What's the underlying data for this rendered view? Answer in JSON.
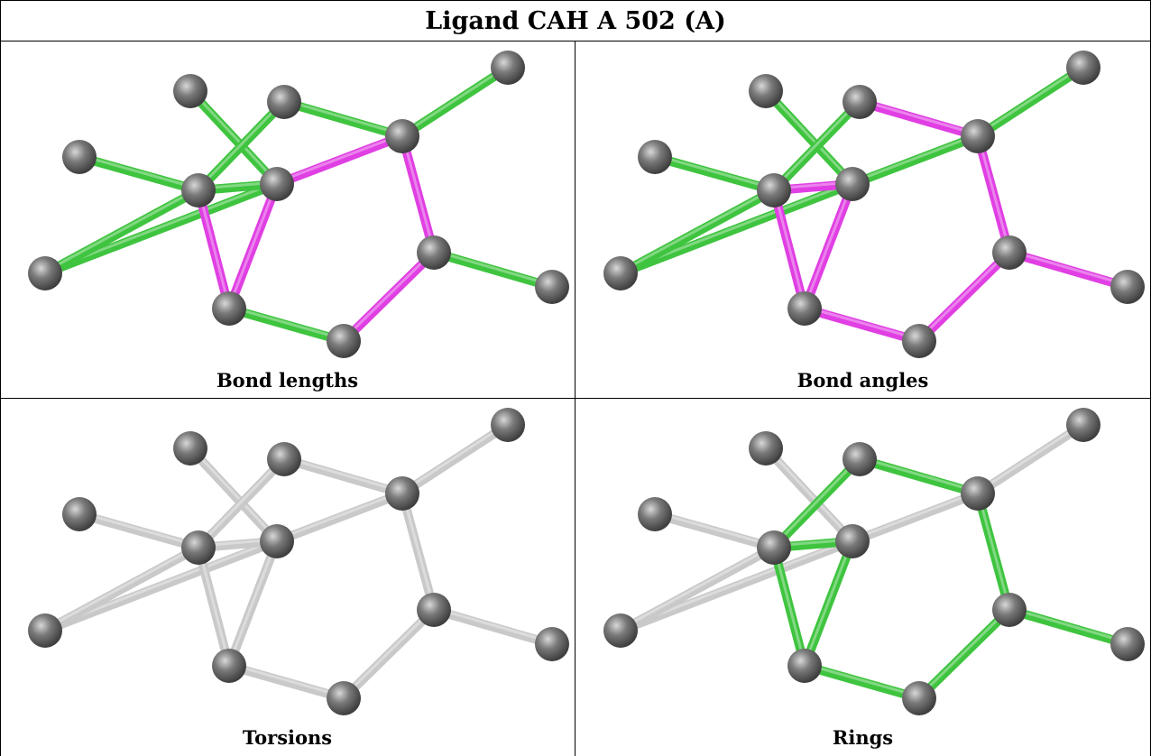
{
  "title": "Ligand CAH A 502 (A)",
  "panels": [
    {
      "caption": "Bond lengths",
      "bond_colors": [
        "green",
        "green",
        "green",
        "green",
        "magenta",
        "green",
        "green",
        "magenta",
        "magenta",
        "magenta",
        "magenta",
        "green",
        "green",
        "green",
        "green"
      ]
    },
    {
      "caption": "Bond angles",
      "bond_colors": [
        "green",
        "green",
        "magenta",
        "green",
        "green",
        "green",
        "green",
        "magenta",
        "magenta",
        "magenta",
        "magenta",
        "magenta",
        "magenta",
        "green",
        "magenta"
      ]
    },
    {
      "caption": "Torsions",
      "bond_colors": [
        "grey",
        "grey",
        "grey",
        "grey",
        "grey",
        "grey",
        "grey",
        "grey",
        "grey",
        "grey",
        "grey",
        "grey",
        "grey",
        "grey",
        "grey"
      ]
    },
    {
      "caption": "Rings",
      "bond_colors": [
        "grey",
        "grey",
        "green",
        "grey",
        "grey",
        "green",
        "grey",
        "green",
        "green",
        "green",
        "green",
        "green",
        "green",
        "grey",
        "green"
      ]
    }
  ],
  "colors": {
    "green": "#3fc43f",
    "magenta": "#e03fe3",
    "grey": "#c9c9c9",
    "atom": "#7a7a7a"
  }
}
